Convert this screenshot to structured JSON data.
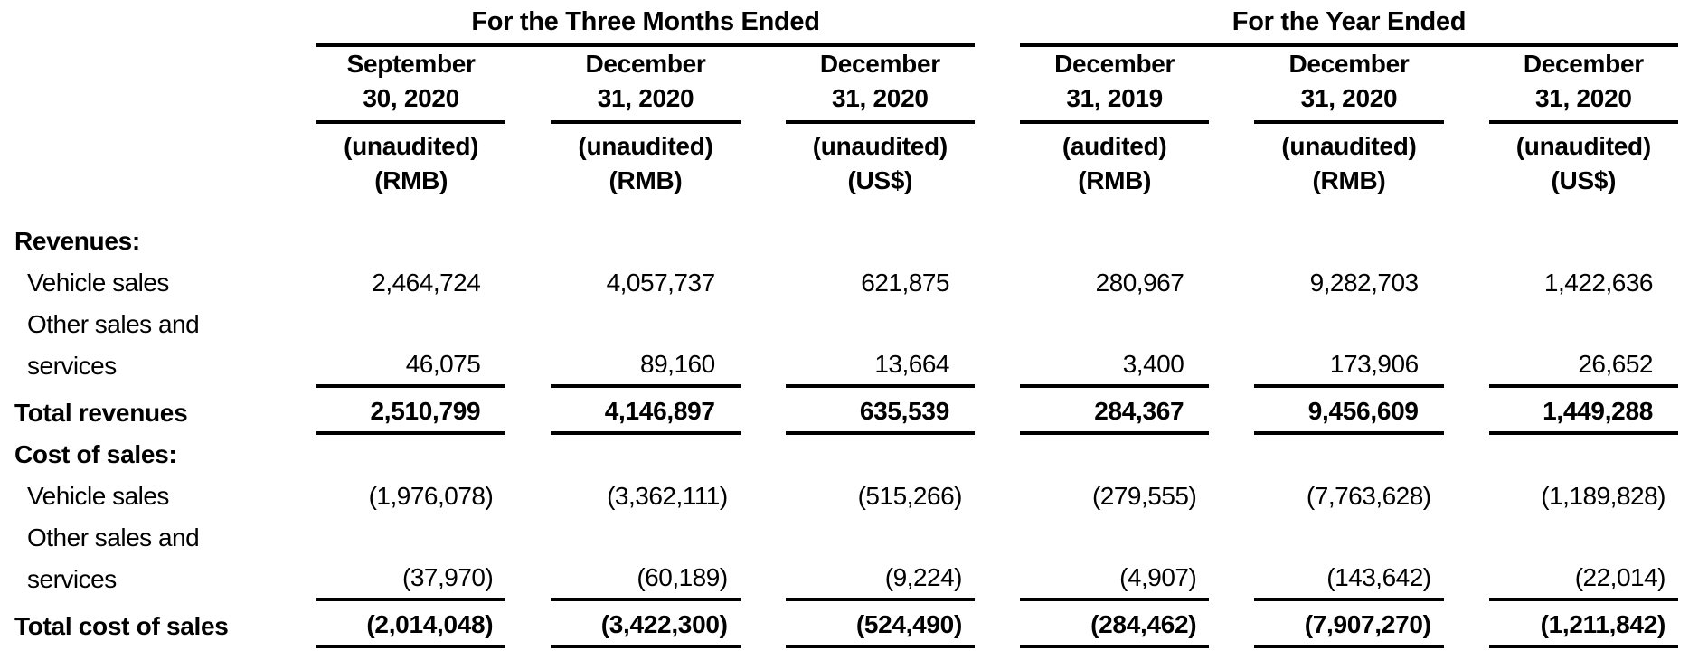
{
  "table": {
    "col_groups": [
      {
        "title": "For the Three Months Ended",
        "span": 3
      },
      {
        "title": "For the Year Ended",
        "span": 3
      }
    ],
    "columns": [
      {
        "date_line1": "September",
        "date_line2": "30, 2020",
        "audit": "(unaudited)",
        "currency": "(RMB)"
      },
      {
        "date_line1": "December",
        "date_line2": "31, 2020",
        "audit": "(unaudited)",
        "currency": "(RMB)"
      },
      {
        "date_line1": "December",
        "date_line2": "31, 2020",
        "audit": "(unaudited)",
        "currency": "(US$)"
      },
      {
        "date_line1": "December",
        "date_line2": "31, 2019",
        "audit": "(audited)",
        "currency": "(RMB)"
      },
      {
        "date_line1": "December",
        "date_line2": "31, 2020",
        "audit": "(unaudited)",
        "currency": "(RMB)"
      },
      {
        "date_line1": "December",
        "date_line2": "31, 2020",
        "audit": "(unaudited)",
        "currency": "(US$)"
      }
    ],
    "rows": [
      {
        "label": "Revenues:",
        "style": "section",
        "rule_below": false,
        "values": []
      },
      {
        "label": "Vehicle sales",
        "style": "item",
        "rule_below": false,
        "values": [
          "2,464,724",
          "4,057,737",
          "621,875",
          "280,967",
          "9,282,703",
          "1,422,636"
        ]
      },
      {
        "label": "Other sales and",
        "style": "wrap",
        "rule_below": false,
        "values": []
      },
      {
        "label": "services",
        "style": "item",
        "rule_below": true,
        "values": [
          "46,075",
          "89,160",
          "13,664",
          "3,400",
          "173,906",
          "26,652"
        ]
      },
      {
        "label": "Total revenues",
        "style": "total",
        "rule_below": true,
        "values": [
          "2,510,799",
          "4,146,897",
          "635,539",
          "284,367",
          "9,456,609",
          "1,449,288"
        ]
      },
      {
        "label": "Cost of sales:",
        "style": "section",
        "rule_below": false,
        "values": []
      },
      {
        "label": "Vehicle sales",
        "style": "item",
        "rule_below": false,
        "values": [
          "(1,976,078)",
          "(3,362,111)",
          "(515,266)",
          "(279,555)",
          "(7,763,628)",
          "(1,189,828)"
        ]
      },
      {
        "label": "Other sales and",
        "style": "wrap",
        "rule_below": false,
        "values": []
      },
      {
        "label": "services",
        "style": "item",
        "rule_below": true,
        "values": [
          "(37,970)",
          "(60,189)",
          "(9,224)",
          "(4,907)",
          "(143,642)",
          "(22,014)"
        ]
      },
      {
        "label": "Total cost of sales",
        "style": "total",
        "rule_below": true,
        "values": [
          "(2,014,048)",
          "(3,422,300)",
          "(524,490)",
          "(284,462)",
          "(7,907,270)",
          "(1,211,842)"
        ]
      }
    ],
    "colors": {
      "text": "#000000",
      "rule": "#000000",
      "background": "#ffffff"
    }
  }
}
